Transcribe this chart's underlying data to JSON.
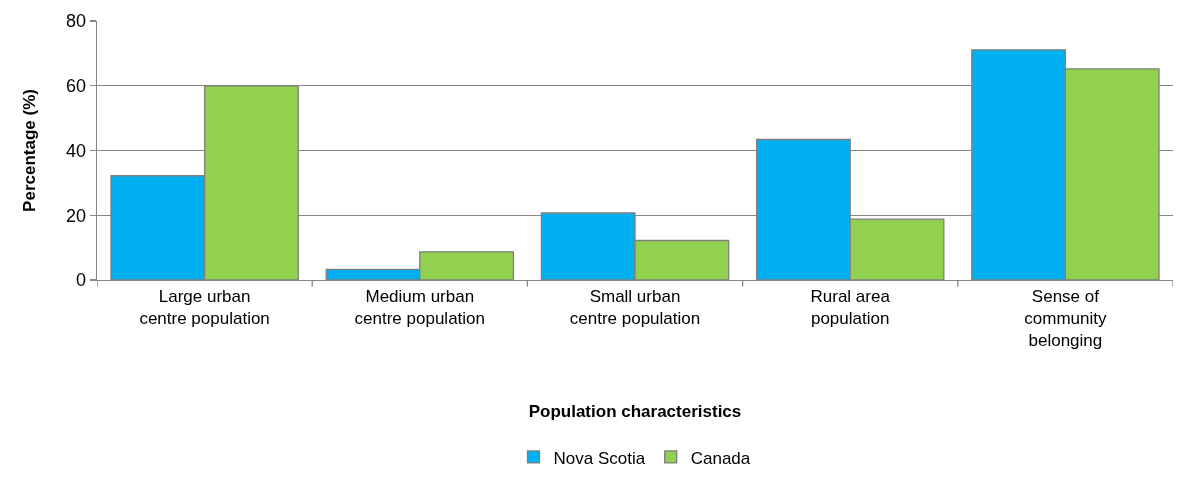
{
  "chart_data": {
    "type": "bar",
    "xlabel": "Population characteristics",
    "ylabel": "Percentage (%)",
    "categories": [
      "Large urban centre population",
      "Medium urban centre population",
      "Small urban centre population",
      "Rural area population",
      "Sense of community belonging"
    ],
    "series": [
      {
        "name": "Nova Scotia",
        "color": "#00b0f0",
        "values": [
          32.2,
          3.3,
          20.7,
          43.4,
          71.1
        ]
      },
      {
        "name": "Canada",
        "color": "#92d050",
        "values": [
          60.0,
          8.7,
          12.2,
          18.8,
          65.2
        ]
      }
    ],
    "ylim": [
      0,
      80
    ],
    "yticks": [
      0,
      20,
      40,
      60,
      80
    ],
    "grid": "y",
    "legend": "bottom"
  }
}
